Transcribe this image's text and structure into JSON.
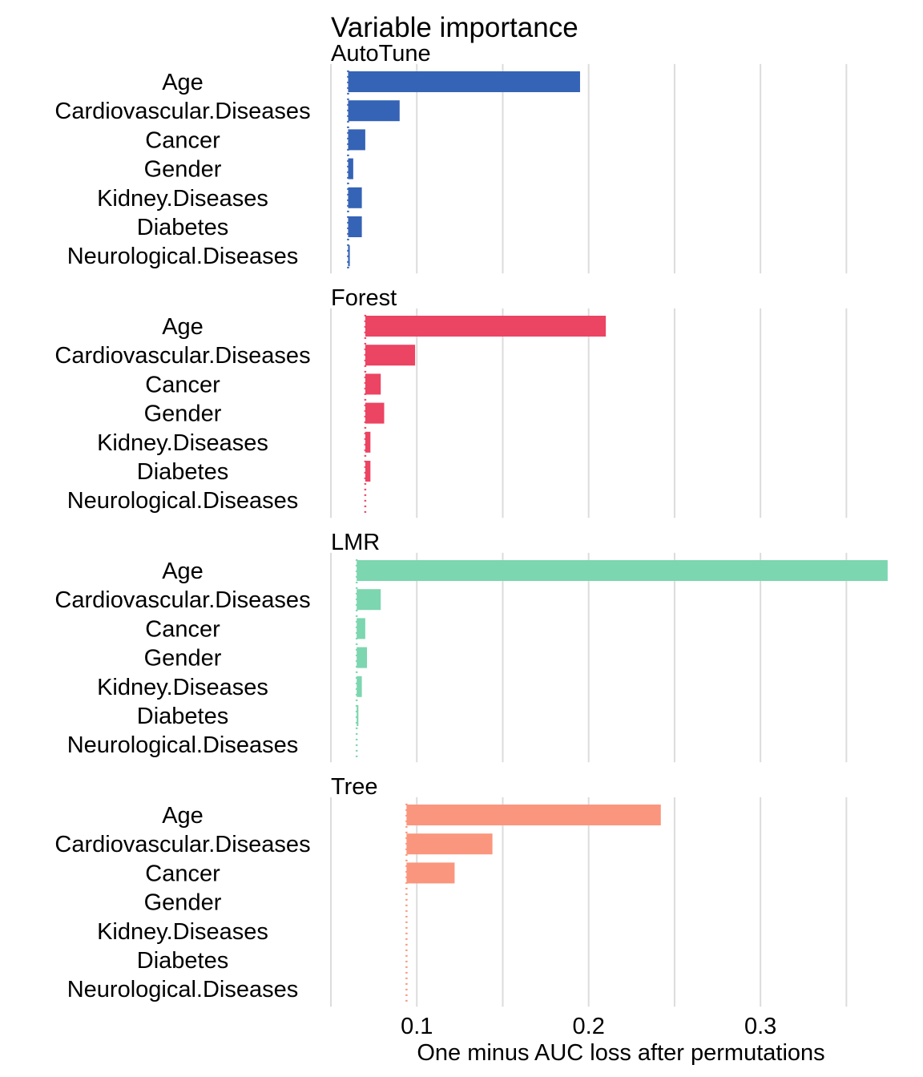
{
  "chart_data": {
    "type": "bar",
    "orientation": "horizontal",
    "title": "Variable importance",
    "xlabel": "One minus AUC loss after permutations",
    "ylabel": "",
    "xlim": [
      0.05,
      0.375
    ],
    "xticks": [
      0.1,
      0.2,
      0.3
    ],
    "xtick_labels": [
      "0.1",
      "0.2",
      "0.3"
    ],
    "grid": true,
    "legend": "none",
    "categories": [
      "Age",
      "Cardiovascular.Diseases",
      "Cancer",
      "Gender",
      "Kidney.Diseases",
      "Diabetes",
      "Neurological.Diseases"
    ],
    "panels": [
      {
        "name": "AutoTune",
        "color": "#3563b5",
        "baseline": 0.06,
        "values": [
          0.195,
          0.09,
          0.07,
          0.063,
          0.068,
          0.068,
          0.061
        ]
      },
      {
        "name": "Forest",
        "color": "#ec4463",
        "baseline": 0.07,
        "values": [
          0.21,
          0.099,
          0.079,
          0.081,
          0.073,
          0.073,
          0.07
        ]
      },
      {
        "name": "LMR",
        "color": "#7cd6af",
        "baseline": 0.065,
        "values": [
          0.374,
          0.079,
          0.07,
          0.071,
          0.068,
          0.066,
          0.065
        ]
      },
      {
        "name": "Tree",
        "color": "#fa967d",
        "baseline": 0.094,
        "values": [
          0.242,
          0.144,
          0.122,
          0.094,
          0.094,
          0.094,
          0.094
        ]
      }
    ]
  }
}
